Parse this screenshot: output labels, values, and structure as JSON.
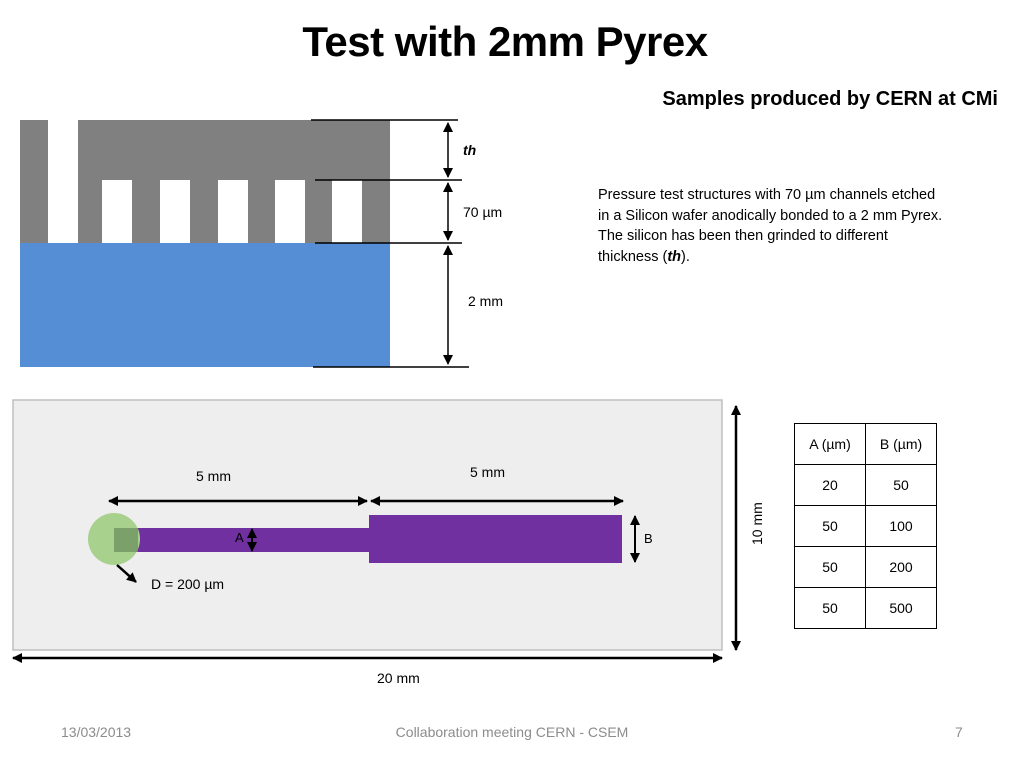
{
  "slide": {
    "title": "Test with 2mm Pyrex",
    "subtitle": "Samples produced by CERN at CMi",
    "description": {
      "line1": "Pressure test structures with 70 µm channels etched",
      "line2": "in a Silicon wafer anodically bonded to a 2 mm Pyrex.",
      "line3": "The silicon has been then  grinded to different",
      "line4_pre": "thickness (",
      "line4_em": "th",
      "line4_post": ")."
    }
  },
  "cross_section": {
    "label_th": "th",
    "label_channel": "70 µm",
    "label_pyrex": "2 mm",
    "colors": {
      "silicon": "#808080",
      "pyrex": "#558ED5"
    }
  },
  "top_view": {
    "label_left_length": "5 mm",
    "label_right_length": "5 mm",
    "label_a": "A",
    "label_b": "B",
    "label_diameter": "D = 200 µm",
    "label_height": "10 mm",
    "label_width": "20 mm",
    "colors": {
      "channel": "#7030A0",
      "inlet": "#A9D18E",
      "background": "#EEEEEE"
    }
  },
  "dimension_table": {
    "headers": [
      "A (µm)",
      "B (µm)"
    ],
    "rows": [
      [
        "20",
        "50"
      ],
      [
        "50",
        "100"
      ],
      [
        "50",
        "200"
      ],
      [
        "50",
        "500"
      ]
    ]
  },
  "footer": {
    "date": "13/03/2013",
    "event": "Collaboration meeting CERN - CSEM",
    "page": "7"
  }
}
